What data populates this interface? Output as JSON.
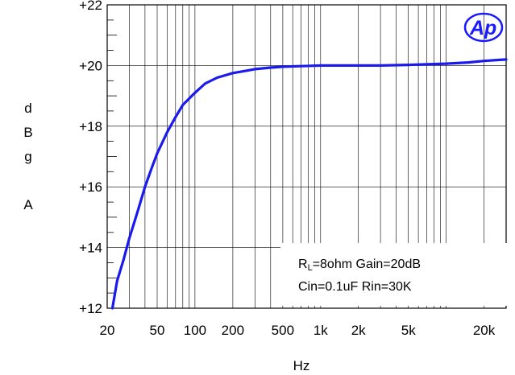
{
  "chart_data": {
    "type": "line",
    "title": "",
    "xlabel": "Hz",
    "ylabel": "dBg A",
    "ylabel_chars": [
      "d",
      "B",
      "g",
      "",
      "A"
    ],
    "x_scale": "log",
    "xlim": [
      20,
      30000
    ],
    "ylim": [
      12,
      22
    ],
    "grid": true,
    "x_ticks": [
      {
        "value": 20,
        "label": "20"
      },
      {
        "value": 50,
        "label": "50"
      },
      {
        "value": 100,
        "label": "100"
      },
      {
        "value": 200,
        "label": "200"
      },
      {
        "value": 500,
        "label": "500"
      },
      {
        "value": 1000,
        "label": "1k"
      },
      {
        "value": 2000,
        "label": "2k"
      },
      {
        "value": 5000,
        "label": "5k"
      },
      {
        "value": 20000,
        "label": "20k"
      }
    ],
    "y_ticks": [
      {
        "value": 12,
        "label": "+12"
      },
      {
        "value": 14,
        "label": "+14"
      },
      {
        "value": 16,
        "label": "+16"
      },
      {
        "value": 18,
        "label": "+18"
      },
      {
        "value": 20,
        "label": "+20"
      },
      {
        "value": 22,
        "label": "+22"
      }
    ],
    "series": [
      {
        "color": "#1a1aee",
        "x": [
          22,
          24,
          27,
          30,
          35,
          40,
          45,
          50,
          60,
          70,
          80,
          100,
          120,
          150,
          200,
          250,
          300,
          400,
          500,
          700,
          1000,
          2000,
          3000,
          5000,
          10000,
          15000,
          20000,
          30000
        ],
        "y": [
          12.0,
          12.9,
          13.6,
          14.3,
          15.2,
          16.0,
          16.6,
          17.1,
          17.8,
          18.3,
          18.7,
          19.1,
          19.4,
          19.6,
          19.75,
          19.82,
          19.88,
          19.93,
          19.96,
          19.98,
          20.0,
          20.0,
          20.0,
          20.02,
          20.06,
          20.1,
          20.15,
          20.2
        ]
      }
    ],
    "annotations": [
      {
        "base": "R",
        "sub": "L",
        "rest": "=8ohm Gain=20dB"
      },
      {
        "text": "Cin=0.1uF Rin=30K"
      }
    ],
    "logo_text": "Ap"
  }
}
